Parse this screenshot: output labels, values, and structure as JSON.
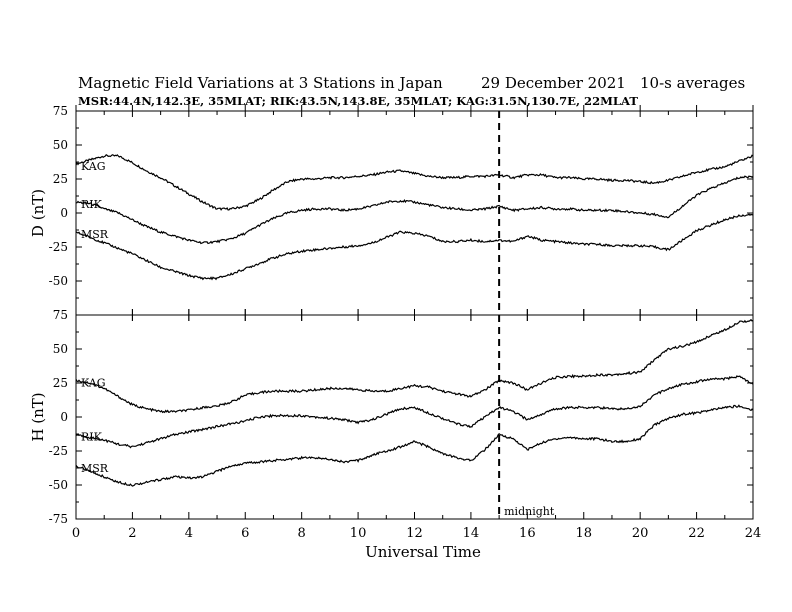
{
  "chart_data": {
    "type": "line",
    "title": "Magnetic Field Variations at 3 Stations in Japan",
    "date": "29 December 2021",
    "averaging": "10-s averages",
    "subtitle": "MSR:44.4N,142.3E, 35MLAT;  RIK:43.5N,143.8E, 35MLAT;  KAG:31.5N,130.7E, 22MLAT",
    "xlabel": "Universal Time",
    "xlim": [
      0,
      24
    ],
    "xticks": [
      "0",
      "2",
      "4",
      "6",
      "8",
      "10",
      "12",
      "14",
      "16",
      "18",
      "20",
      "22",
      "24"
    ],
    "midnight_line": {
      "x": 15,
      "label": "midnight"
    },
    "grid": false,
    "panels": [
      {
        "id": "D",
        "ylabel": "D (nT)",
        "ylim": [
          -75,
          75
        ],
        "yticks": [
          "75",
          "50",
          "25",
          "0",
          "-25",
          "-50",
          "-75"
        ],
        "series": [
          {
            "name": "KAG",
            "x": [
              0,
              0.5,
              1,
              1.5,
              2,
              2.5,
              3,
              3.5,
              4,
              4.5,
              5,
              5.5,
              6,
              6.5,
              7,
              7.5,
              8,
              8.5,
              9,
              9.5,
              10,
              10.5,
              11,
              11.5,
              12,
              12.5,
              13,
              13.5,
              14,
              14.5,
              15,
              15.5,
              16,
              16.5,
              17,
              17.5,
              18,
              18.5,
              19,
              19.5,
              20,
              20.5,
              21,
              21.5,
              22,
              22.5,
              23,
              23.5,
              24
            ],
            "values": [
              36,
              39,
              42,
              42,
              37,
              31,
              26,
              20,
              14,
              8,
              3,
              3,
              5,
              10,
              17,
              23,
              25,
              25,
              26,
              26,
              27,
              28,
              30,
              31,
              29,
              27,
              26,
              26,
              27,
              27,
              28,
              26,
              28,
              28,
              26,
              26,
              25,
              25,
              24,
              24,
              23,
              22,
              24,
              27,
              30,
              32,
              34,
              38,
              42
            ]
          },
          {
            "name": "RIK",
            "x": [
              0,
              0.5,
              1,
              1.5,
              2,
              2.5,
              3,
              3.5,
              4,
              4.5,
              5,
              5.5,
              6,
              6.5,
              7,
              7.5,
              8,
              8.5,
              9,
              9.5,
              10,
              10.5,
              11,
              11.5,
              12,
              12.5,
              13,
              13.5,
              14,
              14.5,
              15,
              15.5,
              16,
              16.5,
              17,
              17.5,
              18,
              18.5,
              19,
              19.5,
              20,
              20.5,
              21,
              21.5,
              22,
              22.5,
              23,
              23.5,
              24
            ],
            "values": [
              8,
              7,
              3,
              0,
              -5,
              -10,
              -14,
              -17,
              -20,
              -22,
              -21,
              -19,
              -15,
              -9,
              -4,
              0,
              2,
              3,
              3,
              2,
              3,
              5,
              8,
              9,
              8,
              6,
              4,
              3,
              2,
              3,
              5,
              2,
              3,
              4,
              3,
              3,
              2,
              2,
              2,
              1,
              0,
              -1,
              -3,
              5,
              13,
              18,
              22,
              26,
              27
            ]
          },
          {
            "name": "MSR",
            "x": [
              0,
              0.5,
              1,
              1.5,
              2,
              2.5,
              3,
              3.5,
              4,
              4.5,
              5,
              5.5,
              6,
              6.5,
              7,
              7.5,
              8,
              8.5,
              9,
              9.5,
              10,
              10.5,
              11,
              11.5,
              12,
              12.5,
              13,
              13.5,
              14,
              14.5,
              15,
              15.5,
              16,
              16.5,
              17,
              17.5,
              18,
              18.5,
              19,
              19.5,
              20,
              20.5,
              21,
              21.5,
              22,
              22.5,
              23,
              23.5,
              24
            ],
            "values": [
              -14,
              -18,
              -22,
              -26,
              -30,
              -35,
              -40,
              -43,
              -46,
              -48,
              -48,
              -45,
              -41,
              -37,
              -33,
              -30,
              -28,
              -27,
              -26,
              -25,
              -24,
              -22,
              -18,
              -14,
              -15,
              -17,
              -21,
              -21,
              -20,
              -21,
              -20,
              -21,
              -17,
              -20,
              -21,
              -22,
              -23,
              -23,
              -24,
              -24,
              -24,
              -25,
              -27,
              -20,
              -13,
              -9,
              -5,
              -2,
              -1
            ]
          }
        ]
      },
      {
        "id": "H",
        "ylabel": "H (nT)",
        "ylim": [
          -75,
          75
        ],
        "yticks": [
          "75",
          "50",
          "25",
          "0",
          "-25",
          "-50",
          "-75"
        ],
        "series": [
          {
            "name": "KAG",
            "x": [
              0,
              0.5,
              1,
              1.5,
              2,
              2.5,
              3,
              3.5,
              4,
              4.5,
              5,
              5.5,
              6,
              6.5,
              7,
              7.5,
              8,
              8.5,
              9,
              9.5,
              10,
              10.5,
              11,
              11.5,
              12,
              12.5,
              13,
              13.5,
              14,
              14.5,
              15,
              15.5,
              16,
              16.5,
              17,
              17.5,
              18,
              18.5,
              19,
              19.5,
              20,
              20.5,
              21,
              21.5,
              22,
              22.5,
              23,
              23.5,
              24
            ],
            "values": [
              27,
              25,
              21,
              15,
              9,
              6,
              4,
              4,
              5,
              7,
              8,
              11,
              16,
              18,
              19,
              19,
              19,
              20,
              21,
              21,
              20,
              19,
              19,
              21,
              23,
              22,
              19,
              17,
              15,
              20,
              27,
              25,
              20,
              25,
              29,
              30,
              30,
              31,
              31,
              32,
              33,
              42,
              50,
              52,
              55,
              60,
              64,
              70,
              71
            ]
          },
          {
            "name": "RIK",
            "x": [
              0,
              0.5,
              1,
              1.5,
              2,
              2.5,
              3,
              3.5,
              4,
              4.5,
              5,
              5.5,
              6,
              6.5,
              7,
              7.5,
              8,
              8.5,
              9,
              9.5,
              10,
              10.5,
              11,
              11.5,
              12,
              12.5,
              13,
              13.5,
              14,
              14.5,
              15,
              15.5,
              16,
              16.5,
              17,
              17.5,
              18,
              18.5,
              19,
              19.5,
              20,
              20.5,
              21,
              21.5,
              22,
              22.5,
              23,
              23.5,
              24
            ],
            "values": [
              -13,
              -15,
              -17,
              -20,
              -22,
              -19,
              -16,
              -13,
              -11,
              -9,
              -7,
              -5,
              -3,
              0,
              1,
              1,
              1,
              0,
              -1,
              -2,
              -4,
              -2,
              2,
              6,
              7,
              3,
              -1,
              -5,
              -7,
              0,
              7,
              4,
              -2,
              2,
              6,
              7,
              7,
              7,
              6,
              6,
              8,
              16,
              21,
              24,
              26,
              28,
              28,
              30,
              24
            ]
          },
          {
            "name": "MSR",
            "x": [
              0,
              0.5,
              1,
              1.5,
              2,
              2.5,
              3,
              3.5,
              4,
              4.5,
              5,
              5.5,
              6,
              6.5,
              7,
              7.5,
              8,
              8.5,
              9,
              9.5,
              10,
              10.5,
              11,
              11.5,
              12,
              12.5,
              13,
              13.5,
              14,
              14.5,
              15,
              15.5,
              16,
              16.5,
              17,
              17.5,
              18,
              18.5,
              19,
              19.5,
              20,
              20.5,
              21,
              21.5,
              22,
              22.5,
              23,
              23.5,
              24
            ],
            "values": [
              -36,
              -40,
              -44,
              -48,
              -50,
              -48,
              -46,
              -44,
              -45,
              -44,
              -40,
              -36,
              -34,
              -33,
              -32,
              -31,
              -30,
              -30,
              -31,
              -33,
              -32,
              -28,
              -25,
              -22,
              -18,
              -22,
              -27,
              -30,
              -32,
              -24,
              -13,
              -16,
              -24,
              -19,
              -16,
              -15,
              -16,
              -16,
              -18,
              -18,
              -16,
              -6,
              -1,
              2,
              3,
              5,
              7,
              8,
              5
            ]
          }
        ]
      }
    ]
  }
}
